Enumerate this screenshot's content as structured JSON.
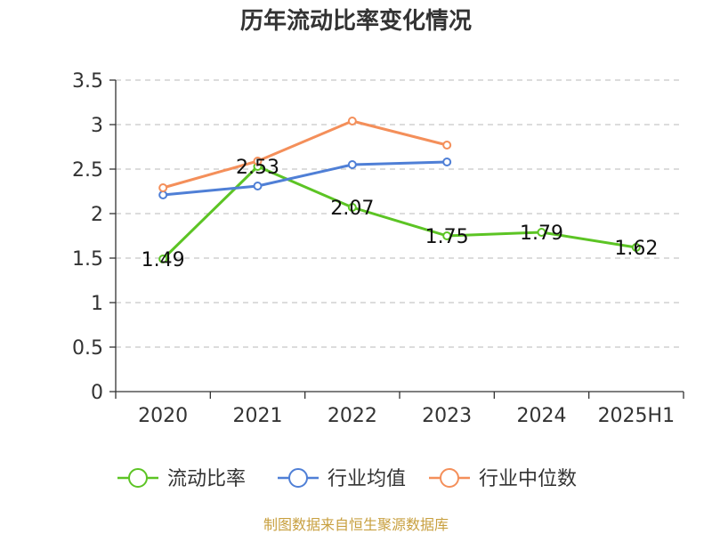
{
  "chart_data": {
    "type": "line",
    "title": "历年流动比率变化情况",
    "categories": [
      "2020",
      "2021",
      "2022",
      "2023",
      "2024",
      "2025H1"
    ],
    "ylim": [
      0,
      3.5
    ],
    "yticks": [
      "0",
      "0.5",
      "1",
      "1.5",
      "2",
      "2.5",
      "3",
      "3.5"
    ],
    "grid": true,
    "legend_position": "bottom",
    "series": [
      {
        "name": "流动比率",
        "color": "#5cc424",
        "values": [
          1.49,
          2.53,
          2.07,
          1.75,
          1.79,
          1.62
        ],
        "labels": [
          "1.49",
          "2.53",
          "2.07",
          "1.75",
          "1.79",
          "1.62"
        ]
      },
      {
        "name": "行业均值",
        "color": "#4f7fd6",
        "values": [
          2.21,
          2.31,
          2.55,
          2.58,
          null,
          null
        ]
      },
      {
        "name": "行业中位数",
        "color": "#f48f5a",
        "values": [
          2.29,
          2.59,
          3.04,
          2.77,
          null,
          null
        ]
      }
    ],
    "source": "制图数据来自恒生聚源数据库"
  }
}
